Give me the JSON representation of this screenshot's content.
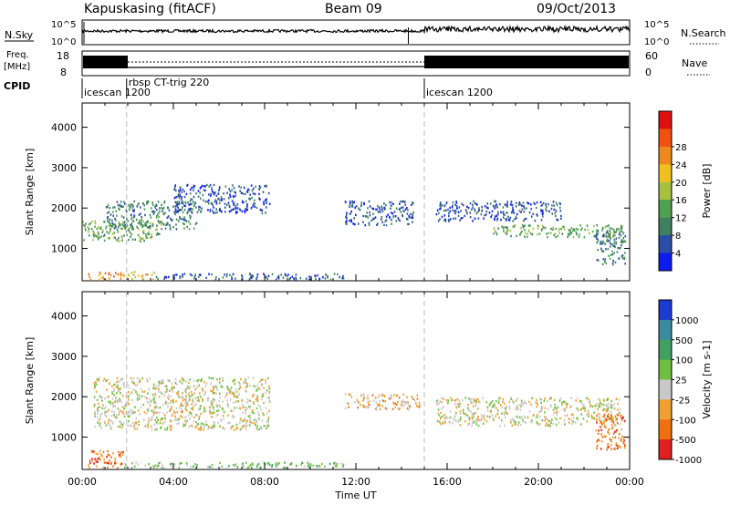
{
  "header": {
    "station": "Kapuskasing (fitACF)",
    "beam": "Beam 09",
    "date": "09/Oct/2013"
  },
  "strip_labels": {
    "nsky": "N.Sky",
    "nsearch": "N.Search",
    "freq_line1": "Freq.",
    "freq_line2": "[MHz]",
    "nave": "Nave",
    "cpid": "CPID"
  },
  "strip_ticks": {
    "noise_top": "10^5",
    "noise_bottom": "10^0",
    "noise_right_top": "10^5",
    "noise_right_bottom": "10^0",
    "freq_top": "18",
    "freq_bottom": "8",
    "nave_top": "60",
    "nave_bottom": "0"
  },
  "cpid_segments": [
    {
      "label": "icescan 1200",
      "start_hour": 0.0
    },
    {
      "label": "rbsp CT-trig 220",
      "start_hour": 1.95
    },
    {
      "label": "icescan 1200",
      "start_hour": 15.0
    }
  ],
  "chart_data": [
    {
      "type": "heatmap",
      "quantity": "power",
      "xlabel": "",
      "ylabel": "Slant Range [km]",
      "xlim_hours": [
        0,
        24
      ],
      "ylim": [
        200,
        4600
      ],
      "y_ticks": [
        1000,
        2000,
        3000,
        4000
      ],
      "colorbar": {
        "label": "Power [dB]",
        "ticks": [
          "4",
          "8",
          "12",
          "16",
          "20",
          "24",
          "28"
        ],
        "colors": [
          "#0a1cf0",
          "#2b4ea8",
          "#3f8060",
          "#4fa050",
          "#a8c040",
          "#f0c020",
          "#f08820",
          "#f05010",
          "#e01010"
        ]
      },
      "echo_regions": [
        {
          "t0": 0.2,
          "t1": 1.6,
          "r0": 250,
          "r1": 450,
          "level": 6
        },
        {
          "t0": 1.6,
          "t1": 3.2,
          "r0": 250,
          "r1": 450,
          "level": 5
        },
        {
          "t0": 3.2,
          "t1": 11.5,
          "r0": 250,
          "r1": 400,
          "level": 1
        },
        {
          "t0": 0.0,
          "t1": 3.5,
          "r0": 1200,
          "r1": 1700,
          "level": 3
        },
        {
          "t0": 1.0,
          "t1": 5.0,
          "r0": 1500,
          "r1": 2200,
          "level": 2
        },
        {
          "t0": 4.0,
          "t1": 8.2,
          "r0": 1900,
          "r1": 2600,
          "level": 1
        },
        {
          "t0": 11.5,
          "t1": 14.5,
          "r0": 1600,
          "r1": 2200,
          "level": 1
        },
        {
          "t0": 18.0,
          "t1": 23.6,
          "r0": 1300,
          "r1": 1600,
          "level": 3
        },
        {
          "t0": 22.5,
          "t1": 23.8,
          "r0": 600,
          "r1": 1600,
          "level": 2
        },
        {
          "t0": 15.5,
          "t1": 21.0,
          "r0": 1700,
          "r1": 2200,
          "level": 1
        }
      ]
    },
    {
      "type": "heatmap",
      "quantity": "velocity",
      "xlabel": "Time UT",
      "ylabel": "Slant Range [km]",
      "xlim_hours": [
        0,
        24
      ],
      "x_ticks": [
        "00:00",
        "04:00",
        "08:00",
        "12:00",
        "16:00",
        "20:00",
        "00:00"
      ],
      "ylim": [
        200,
        4600
      ],
      "y_ticks": [
        1000,
        2000,
        3000,
        4000
      ],
      "colorbar": {
        "label": "Velocity [m s-1]",
        "ticks": [
          "1000",
          "500",
          "100",
          "25",
          "-25",
          "-100",
          "-500",
          "-1000"
        ],
        "colors": [
          "#1a3ad0",
          "#3a8aa0",
          "#40a060",
          "#70c040",
          "#c8c8c8",
          "#f0a030",
          "#f07010",
          "#e02020"
        ]
      },
      "echo_regions": [
        {
          "t0": 0.2,
          "t1": 1.8,
          "r0": 250,
          "r1": 700,
          "level": 6
        },
        {
          "t0": 1.8,
          "t1": 11.5,
          "r0": 250,
          "r1": 400,
          "level": 3
        },
        {
          "t0": 0.5,
          "t1": 8.2,
          "r0": 1200,
          "r1": 2500,
          "level": 4
        },
        {
          "t0": 11.5,
          "t1": 14.8,
          "r0": 1700,
          "r1": 2100,
          "level": 5
        },
        {
          "t0": 15.5,
          "t1": 23.6,
          "r0": 1300,
          "r1": 2000,
          "level": 4
        },
        {
          "t0": 22.5,
          "t1": 23.8,
          "r0": 700,
          "r1": 1600,
          "level": 6
        }
      ]
    }
  ]
}
